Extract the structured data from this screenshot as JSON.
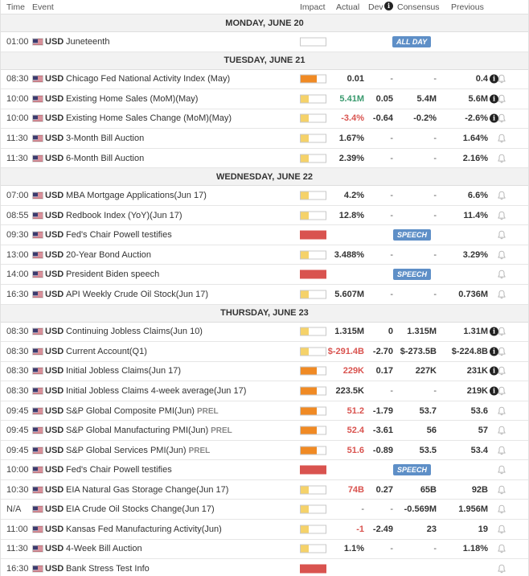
{
  "header": {
    "time": "Time",
    "event": "Event",
    "impact": "Impact",
    "actual": "Actual",
    "dev": "Dev",
    "consensus": "Consensus",
    "previous": "Previous"
  },
  "colors": {
    "low": "#f5d26a",
    "medium": "#f08a24",
    "high": "#d9534f",
    "positive": "#3a9a6e",
    "negative": "#d9534f"
  },
  "days": [
    {
      "label": "MONDAY, JUNE 20",
      "rows": [
        {
          "time": "01:00",
          "cur": "USD",
          "event": "Juneteenth",
          "impact": "none",
          "actual": "",
          "dev": "",
          "cons": "",
          "prev": "",
          "tag": "ALL DAY"
        }
      ]
    },
    {
      "label": "TUESDAY, JUNE 21",
      "rows": [
        {
          "time": "08:30",
          "cur": "USD",
          "event": "Chicago Fed National Activity Index (May)",
          "impact": "medium",
          "actual": "0.01",
          "dev": "-",
          "cons": "-",
          "prev": "0.4",
          "info": true,
          "bell": true
        },
        {
          "time": "10:00",
          "cur": "USD",
          "event": "Existing Home Sales (MoM)(May)",
          "impact": "low",
          "actual": "5.41M",
          "tone": "pos",
          "dev": "0.05",
          "cons": "5.4M",
          "prev": "5.6M",
          "info": true,
          "bell": true
        },
        {
          "time": "10:00",
          "cur": "USD",
          "event": "Existing Home Sales Change (MoM)(May)",
          "impact": "low",
          "actual": "-3.4%",
          "tone": "neg",
          "dev": "-0.64",
          "cons": "-0.2%",
          "prev": "-2.6%",
          "info": true,
          "bell": true
        },
        {
          "time": "11:30",
          "cur": "USD",
          "event": "3-Month Bill Auction",
          "impact": "low",
          "actual": "1.67%",
          "dev": "-",
          "cons": "-",
          "prev": "1.64%",
          "bell": true
        },
        {
          "time": "11:30",
          "cur": "USD",
          "event": "6-Month Bill Auction",
          "impact": "low",
          "actual": "2.39%",
          "dev": "-",
          "cons": "-",
          "prev": "2.16%",
          "bell": true
        }
      ]
    },
    {
      "label": "WEDNESDAY, JUNE 22",
      "rows": [
        {
          "time": "07:00",
          "cur": "USD",
          "event": "MBA Mortgage Applications(Jun 17)",
          "impact": "low",
          "actual": "4.2%",
          "dev": "-",
          "cons": "-",
          "prev": "6.6%",
          "bell": true
        },
        {
          "time": "08:55",
          "cur": "USD",
          "event": "Redbook Index (YoY)(Jun 17)",
          "impact": "low",
          "actual": "12.8%",
          "dev": "-",
          "cons": "-",
          "prev": "11.4%",
          "bell": true
        },
        {
          "time": "09:30",
          "cur": "USD",
          "event": "Fed's Chair Powell testifies",
          "impact": "high",
          "actual": "",
          "dev": "",
          "cons": "",
          "prev": "",
          "tag": "SPEECH",
          "bell": true
        },
        {
          "time": "13:00",
          "cur": "USD",
          "event": "20-Year Bond Auction",
          "impact": "low",
          "actual": "3.488%",
          "dev": "-",
          "cons": "-",
          "prev": "3.29%",
          "bell": true
        },
        {
          "time": "14:00",
          "cur": "USD",
          "event": "President Biden speech",
          "impact": "high",
          "actual": "",
          "dev": "",
          "cons": "",
          "prev": "",
          "tag": "SPEECH",
          "bell": true
        },
        {
          "time": "16:30",
          "cur": "USD",
          "event": "API Weekly Crude Oil Stock(Jun 17)",
          "impact": "low",
          "actual": "5.607M",
          "dev": "-",
          "cons": "-",
          "prev": "0.736M",
          "bell": true
        }
      ]
    },
    {
      "label": "THURSDAY, JUNE 23",
      "rows": [
        {
          "time": "08:30",
          "cur": "USD",
          "event": "Continuing Jobless Claims(Jun 10)",
          "impact": "low",
          "actual": "1.315M",
          "dev": "0",
          "cons": "1.315M",
          "prev": "1.31M",
          "info": true,
          "bell": true
        },
        {
          "time": "08:30",
          "cur": "USD",
          "event": "Current Account(Q1)",
          "impact": "low",
          "actual": "$-291.4B",
          "tone": "neg",
          "dev": "-2.70",
          "cons": "$-273.5B",
          "prev": "$-224.8B",
          "info": true,
          "bell": true
        },
        {
          "time": "08:30",
          "cur": "USD",
          "event": "Initial Jobless Claims(Jun 17)",
          "impact": "medium",
          "actual": "229K",
          "tone": "neg",
          "dev": "0.17",
          "cons": "227K",
          "prev": "231K",
          "info": true,
          "bell": true
        },
        {
          "time": "08:30",
          "cur": "USD",
          "event": "Initial Jobless Claims 4-week average(Jun 17)",
          "impact": "medium",
          "actual": "223.5K",
          "dev": "-",
          "cons": "-",
          "prev": "219K",
          "info": true,
          "bell": true
        },
        {
          "time": "09:45",
          "cur": "USD",
          "event": "S&P Global Composite PMI(Jun)",
          "prel": "PREL",
          "impact": "medium",
          "actual": "51.2",
          "tone": "neg",
          "dev": "-1.79",
          "cons": "53.7",
          "prev": "53.6",
          "bell": true
        },
        {
          "time": "09:45",
          "cur": "USD",
          "event": "S&P Global Manufacturing PMI(Jun)",
          "prel": "PREL",
          "impact": "medium",
          "actual": "52.4",
          "tone": "neg",
          "dev": "-3.61",
          "cons": "56",
          "prev": "57",
          "bell": true
        },
        {
          "time": "09:45",
          "cur": "USD",
          "event": "S&P Global Services PMI(Jun)",
          "prel": "PREL",
          "impact": "medium",
          "actual": "51.6",
          "tone": "neg",
          "dev": "-0.89",
          "cons": "53.5",
          "prev": "53.4",
          "bell": true
        },
        {
          "time": "10:00",
          "cur": "USD",
          "event": "Fed's Chair Powell testifies",
          "impact": "high",
          "actual": "",
          "dev": "",
          "cons": "",
          "prev": "",
          "tag": "SPEECH",
          "bell": true
        },
        {
          "time": "10:30",
          "cur": "USD",
          "event": "EIA Natural Gas Storage Change(Jun 17)",
          "impact": "low",
          "actual": "74B",
          "tone": "neg",
          "dev": "0.27",
          "cons": "65B",
          "prev": "92B",
          "bell": true
        },
        {
          "time": "N/A",
          "cur": "USD",
          "event": "EIA Crude Oil Stocks Change(Jun 17)",
          "impact": "low",
          "actual": "-",
          "dev": "-",
          "cons": "-0.569M",
          "prev": "1.956M",
          "bell": true
        },
        {
          "time": "11:00",
          "cur": "USD",
          "event": "Kansas Fed Manufacturing Activity(Jun)",
          "impact": "low",
          "actual": "-1",
          "tone": "neg",
          "dev": "-2.49",
          "cons": "23",
          "prev": "19",
          "bell": true
        },
        {
          "time": "11:30",
          "cur": "USD",
          "event": "4-Week Bill Auction",
          "impact": "low",
          "actual": "1.1%",
          "dev": "-",
          "cons": "-",
          "prev": "1.18%",
          "bell": true
        },
        {
          "time": "16:30",
          "cur": "USD",
          "event": "Bank Stress Test Info",
          "impact": "high",
          "actual": "",
          "dev": "",
          "cons": "",
          "prev": "",
          "bell": true
        }
      ]
    }
  ]
}
